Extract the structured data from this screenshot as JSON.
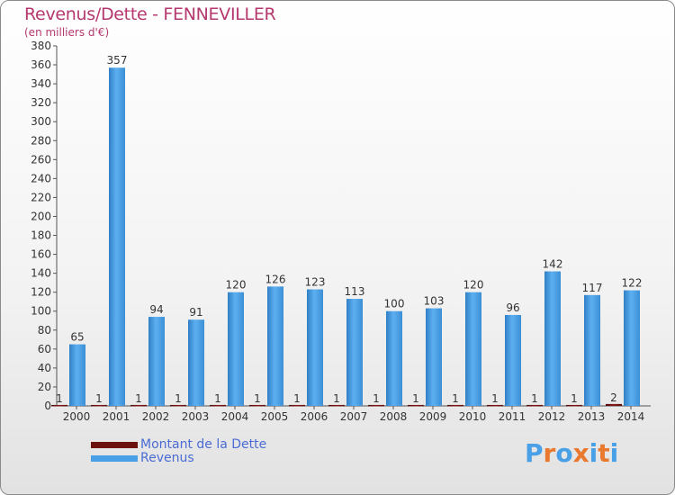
{
  "title": "Revenus/Dette - FENNEVILLER",
  "subtitle": "(en milliers d'€)",
  "legend": [
    {
      "label": "Montant de la Dette",
      "color": "#6b0f0f"
    },
    {
      "label": "Revenus",
      "color": "#4aa0e6"
    }
  ],
  "logo": {
    "text": "Proxiti",
    "colors": [
      "#4aa0e6",
      "#e8792f",
      "#4aa0e6",
      "#e8792f",
      "#4aa0e6",
      "#e8792f",
      "#4aa0e6"
    ]
  },
  "chart_data": {
    "type": "bar",
    "title": "Revenus/Dette - FENNEVILLER",
    "ylabel": "(en milliers d'€)",
    "xlabel": "",
    "ylim": [
      0,
      380
    ],
    "ytick_step": 20,
    "grid": false,
    "categories": [
      "2000",
      "2001",
      "2002",
      "2003",
      "2004",
      "2005",
      "2006",
      "2007",
      "2008",
      "2009",
      "2010",
      "2011",
      "2012",
      "2013",
      "2014"
    ],
    "series": [
      {
        "name": "Montant de la Dette",
        "color": "#6b0f0f",
        "values": [
          1,
          1,
          1,
          1,
          1,
          1,
          1,
          1,
          1,
          1,
          1,
          1,
          1,
          1,
          2
        ]
      },
      {
        "name": "Revenus",
        "color": "#4aa0e6",
        "values": [
          65,
          357,
          94,
          91,
          120,
          126,
          123,
          113,
          100,
          103,
          120,
          96,
          142,
          117,
          122
        ]
      }
    ]
  }
}
